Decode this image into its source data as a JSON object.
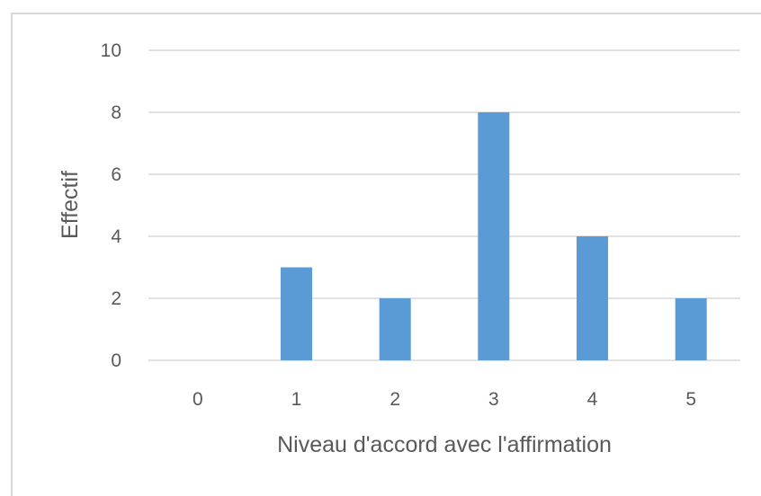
{
  "chart_data": {
    "type": "bar",
    "categories": [
      "0",
      "1",
      "2",
      "3",
      "4",
      "5"
    ],
    "values": [
      0,
      3,
      2,
      8,
      4,
      2
    ],
    "title": "",
    "xlabel": "Niveau d'accord avec l'affirmation",
    "ylabel": "Effectif",
    "ylim": [
      0,
      10
    ],
    "yticks": [
      0,
      2,
      4,
      6,
      8,
      10
    ],
    "grid": true,
    "bar_color": "#5b9bd5",
    "gridline_color": "#d9d9d9",
    "text_color": "#595959"
  }
}
